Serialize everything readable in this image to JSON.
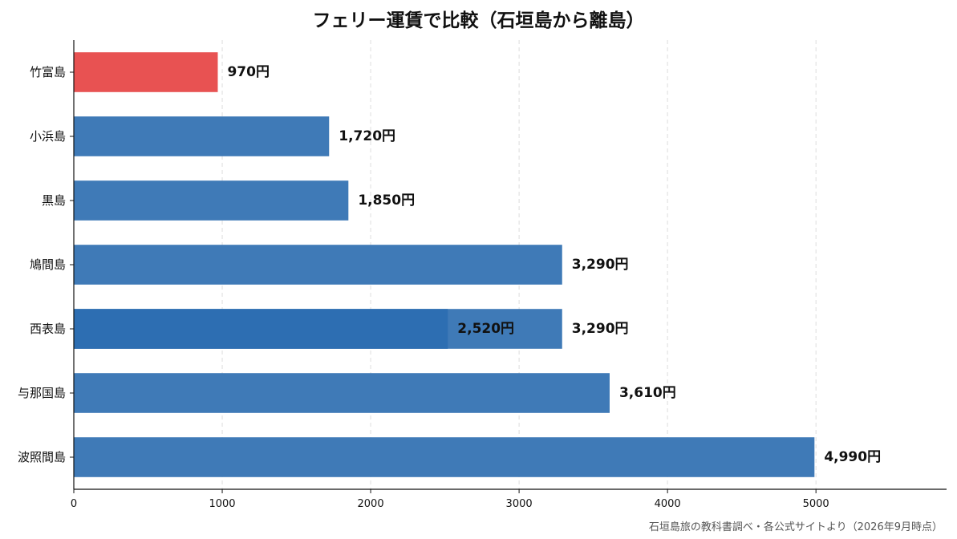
{
  "chart_data": {
    "type": "bar",
    "orientation": "horizontal",
    "title": "フェリー運賃で比較（石垣島から離島）",
    "xlabel": "",
    "ylabel": "",
    "xlim": [
      0,
      5880
    ],
    "x_ticks": [
      0,
      1000,
      2000,
      3000,
      4000,
      5000
    ],
    "grid": "vertical dashed",
    "categories": [
      "竹富島",
      "小浜島",
      "黒島",
      "鳩間島",
      "西表島",
      "与那国島",
      "波照間島"
    ],
    "series": [
      {
        "values": [
          970,
          1720,
          1850,
          3290,
          3290,
          3610,
          4990
        ],
        "labels": [
          "970円",
          "1,720円",
          "1,850円",
          "3,290円",
          "3,290円",
          "3,610円",
          "4,990円"
        ]
      }
    ],
    "overlay": {
      "category": "西表島",
      "value": 2520,
      "label": "2,520円"
    },
    "colors": {
      "highlight": "#e85252",
      "bar": "#3f7ab7",
      "overlay": "#2d6eb2"
    },
    "highlight_category": "竹富島"
  },
  "source_note": "石垣島旅の教科書調べ・各公式サイトより（2026年9月時点）"
}
